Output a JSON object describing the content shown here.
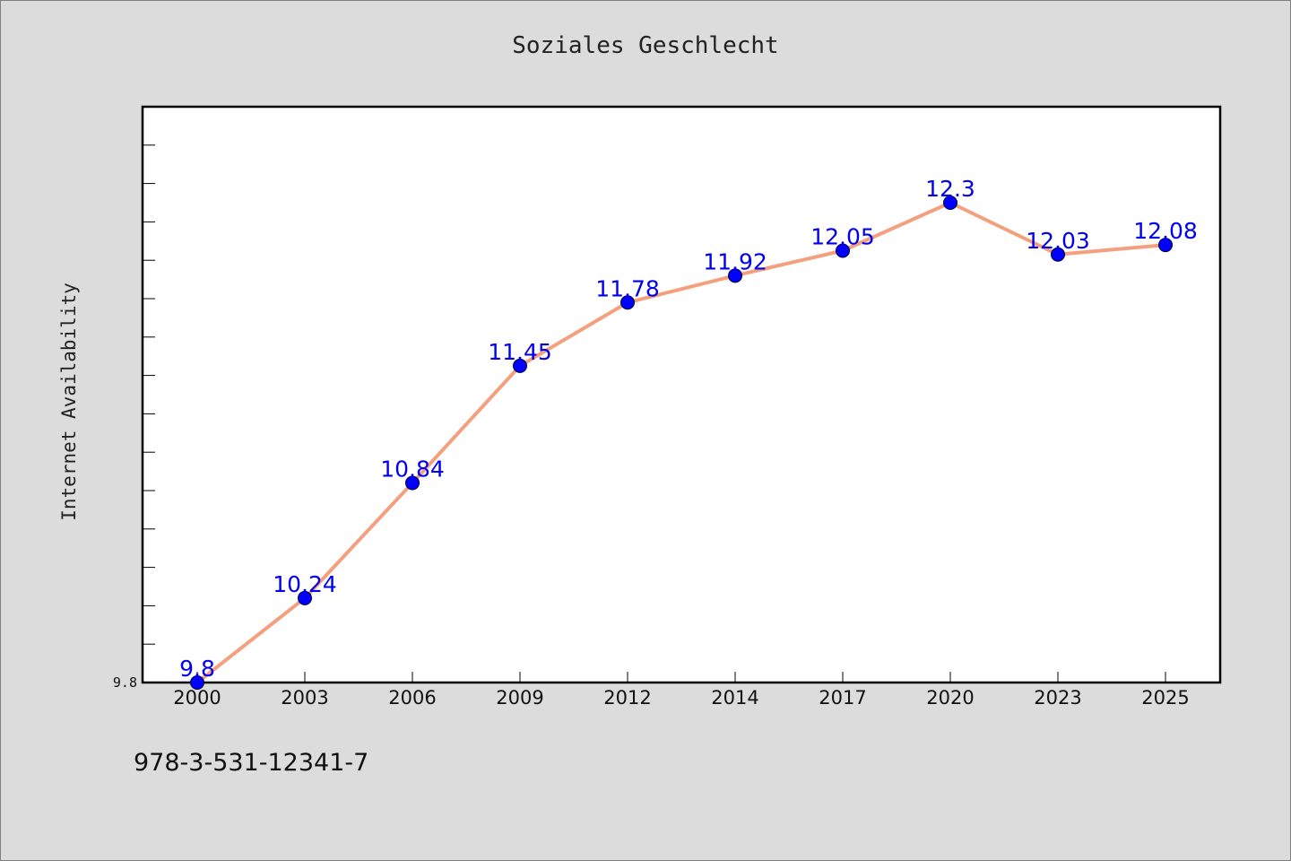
{
  "chart_data": {
    "type": "line",
    "title": "Soziales Geschlecht",
    "xlabel": "",
    "ylabel": "Internet Availability",
    "categories": [
      "2000",
      "2003",
      "2006",
      "2009",
      "2012",
      "2014",
      "2017",
      "2020",
      "2023",
      "2025"
    ],
    "series": [
      {
        "name": "",
        "values": [
          9.8,
          10.24,
          10.84,
          11.45,
          11.78,
          11.92,
          12.05,
          12.3,
          12.03,
          12.08
        ]
      }
    ],
    "data_labels": [
      "9.8",
      "10.24",
      "10.84",
      "11.45",
      "11.78",
      "11.92",
      "12.05",
      "12.3",
      "12.03",
      "12.08"
    ],
    "ylim": [
      9.8,
      12.8
    ],
    "y_tick_labels": [
      "9.8"
    ],
    "grid": false,
    "colors": {
      "line": "#f4a07f",
      "marker": "#0000ff",
      "label": "#0000ee",
      "background": "#dcdcdc",
      "plot_bg": "#ffffff"
    }
  },
  "footer": {
    "isbn": "978-3-531-12341-7"
  }
}
